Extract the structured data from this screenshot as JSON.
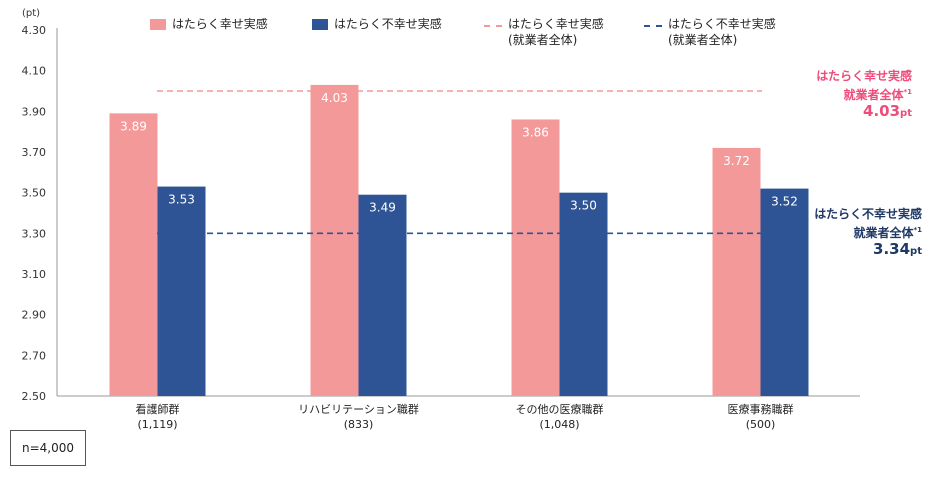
{
  "unit": "(pt)",
  "legend": {
    "happy": "はたらく幸せ実感",
    "unhappy": "はたらく不幸せ実感",
    "happy_all_1": "はたらく幸せ実感",
    "happy_all_2": "(就業者全体)",
    "unhappy_all_1": "はたらく不幸せ実感",
    "unhappy_all_2": "(就業者全体)"
  },
  "ref_happy": {
    "line1": "はたらく幸せ実感",
    "line2": "就業者全体",
    "mark": "*1",
    "value": "4.03",
    "unit": "pt"
  },
  "ref_unhappy": {
    "line1": "はたらく不幸せ実感",
    "line2": "就業者全体",
    "mark": "*1",
    "value": "3.34",
    "unit": "pt"
  },
  "sample": "n=4,000",
  "chart_data": {
    "type": "bar",
    "categories": [
      "看護師群",
      "リハビリテーション職群",
      "その他の医療職群",
      "医療事務職群"
    ],
    "category_counts": [
      "(1,119)",
      "(833)",
      "(1,048)",
      "(500)"
    ],
    "series": [
      {
        "name": "はたらく幸せ実感",
        "values": [
          3.89,
          4.03,
          3.86,
          3.72
        ],
        "labels": [
          "3.89",
          "4.03",
          "3.86",
          "3.72"
        ],
        "color": "#F4999A"
      },
      {
        "name": "はたらく不幸せ実感",
        "values": [
          3.53,
          3.49,
          3.5,
          3.52
        ],
        "labels": [
          "3.53",
          "3.49",
          "3.50",
          "3.52"
        ],
        "color": "#2E5496"
      }
    ],
    "reference_lines": [
      {
        "name": "はたらく幸せ実感(就業者全体)",
        "value": 4.0,
        "color": "#F4999A",
        "style": "dashed"
      },
      {
        "name": "はたらく不幸せ実感(就業者全体)",
        "value": 3.3,
        "color": "#2E5496",
        "style": "dashed"
      }
    ],
    "yticks": [
      "2.50",
      "2.70",
      "2.90",
      "3.10",
      "3.30",
      "3.50",
      "3.70",
      "3.90",
      "4.10",
      "4.30"
    ],
    "ylim": [
      2.5,
      4.3
    ],
    "grid": false,
    "legend_position": "top"
  }
}
